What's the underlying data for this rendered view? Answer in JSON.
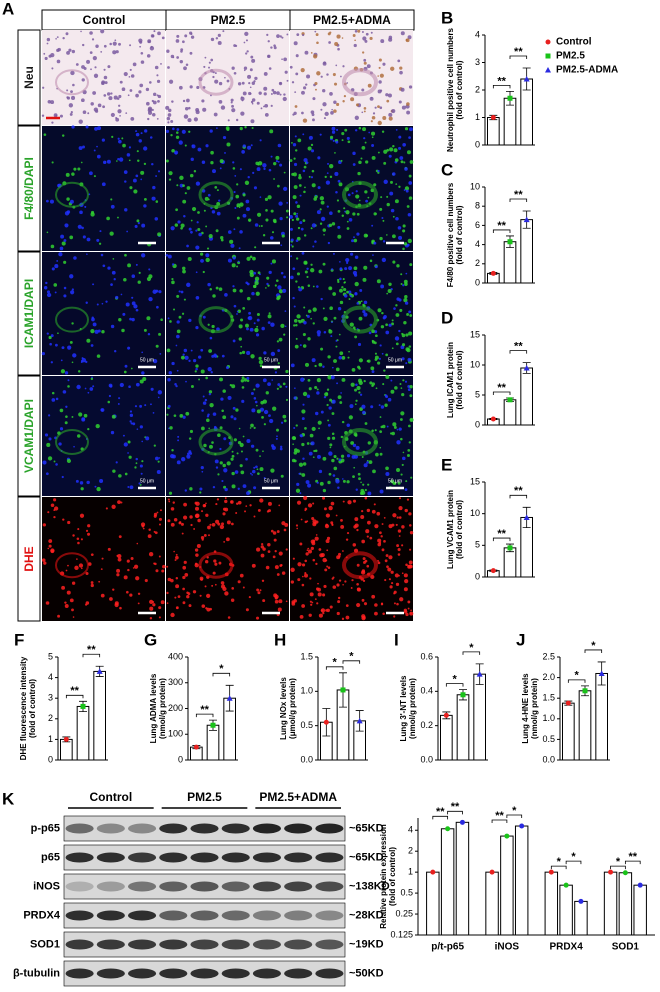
{
  "figure": {
    "panel": "A",
    "columns": [
      "Control",
      "PM2.5",
      "PM2.5+ADMA"
    ],
    "rows": [
      "Neu",
      "F4/80/DAPI",
      "ICAM1/DAPI",
      "VCAM1/DAPI",
      "DHE"
    ],
    "scale_bar_label": "50 μm",
    "groups": [
      {
        "name": "Control",
        "color": "#e8201f"
      },
      {
        "name": "PM2.5",
        "color": "#19c319"
      },
      {
        "name": "PM2.5-ADMA",
        "color": "#2a2ae0"
      }
    ],
    "blot": {
      "panel": "K",
      "groups": [
        "Control",
        "PM2.5",
        "PM2.5+ADMA"
      ],
      "rows": [
        {
          "name": "p-p65",
          "size": "~65KD"
        },
        {
          "name": "p65",
          "size": "~65KD"
        },
        {
          "name": "iNOS",
          "size": "~138KD"
        },
        {
          "name": "PRDX4",
          "size": "~28KD"
        },
        {
          "name": "SOD1",
          "size": "~19KD"
        },
        {
          "name": "β-tubulin",
          "size": "~50KD"
        }
      ]
    }
  },
  "chart_data": [
    {
      "type": "bar",
      "panel": "B",
      "ylabel": [
        "Neutrophil positive cell numbers",
        "(fold of control)"
      ],
      "values": [
        1,
        1.7,
        2.4
      ],
      "errors": [
        0.08,
        0.25,
        0.4
      ],
      "ylim": [
        0,
        4
      ],
      "yticks": [
        0,
        1,
        2,
        3,
        4
      ],
      "significance": [
        {
          "groups": [
            0,
            1
          ],
          "label": "**"
        },
        {
          "groups": [
            1,
            2
          ],
          "label": "**"
        }
      ]
    },
    {
      "type": "bar",
      "panel": "C",
      "ylabel": [
        "F4/80 positive cell numbers",
        "(fold of control)"
      ],
      "values": [
        1,
        4.3,
        6.6
      ],
      "errors": [
        0.1,
        0.6,
        0.9
      ],
      "ylim": [
        0,
        10
      ],
      "yticks": [
        0,
        2,
        4,
        6,
        8,
        10
      ],
      "significance": [
        {
          "groups": [
            0,
            1
          ],
          "label": "**"
        },
        {
          "groups": [
            1,
            2
          ],
          "label": "**"
        }
      ]
    },
    {
      "type": "bar",
      "panel": "D",
      "ylabel": [
        "Lung ICAM1 protein",
        "(fold of control)"
      ],
      "values": [
        1,
        4.2,
        9.5
      ],
      "errors": [
        0.1,
        0.3,
        0.9
      ],
      "ylim": [
        0,
        15
      ],
      "yticks": [
        0,
        5,
        10,
        15
      ],
      "significance": [
        {
          "groups": [
            0,
            1
          ],
          "label": "**"
        },
        {
          "groups": [
            1,
            2
          ],
          "label": "**"
        }
      ]
    },
    {
      "type": "bar",
      "panel": "E",
      "ylabel": [
        "Lung VCAM1 protein",
        "(fold of control)"
      ],
      "values": [
        1,
        4.6,
        9.4
      ],
      "errors": [
        0.1,
        0.6,
        1.6
      ],
      "ylim": [
        0,
        15
      ],
      "yticks": [
        0,
        5,
        10,
        15
      ],
      "significance": [
        {
          "groups": [
            0,
            1
          ],
          "label": "**"
        },
        {
          "groups": [
            1,
            2
          ],
          "label": "**"
        }
      ]
    },
    {
      "type": "bar",
      "panel": "F",
      "ylabel": [
        "DHE fluorescence intensity",
        "(fold of control)"
      ],
      "values": [
        1,
        2.6,
        4.3
      ],
      "errors": [
        0.12,
        0.25,
        0.25
      ],
      "ylim": [
        0,
        5
      ],
      "yticks": [
        0,
        1,
        2,
        3,
        4,
        5
      ],
      "significance": [
        {
          "groups": [
            0,
            1
          ],
          "label": "**"
        },
        {
          "groups": [
            1,
            2
          ],
          "label": "**"
        }
      ]
    },
    {
      "type": "bar",
      "panel": "G",
      "ylabel": [
        "Lung ADMA levels",
        "(nmol/g protein)"
      ],
      "values": [
        50,
        135,
        240
      ],
      "errors": [
        6,
        20,
        50
      ],
      "ylim": [
        0,
        400
      ],
      "yticks": [
        0,
        100,
        200,
        300,
        400
      ],
      "significance": [
        {
          "groups": [
            0,
            1
          ],
          "label": "**"
        },
        {
          "groups": [
            1,
            2
          ],
          "label": "*"
        }
      ]
    },
    {
      "type": "bar",
      "panel": "H",
      "ylabel": [
        "Lung NOx levels",
        "(μmol/g protein)"
      ],
      "values": [
        0.55,
        1.02,
        0.57
      ],
      "errors": [
        0.2,
        0.25,
        0.15
      ],
      "ylim": [
        0,
        1.5
      ],
      "yticks": [
        {
          "value": 0,
          "label": "0.0"
        },
        {
          "value": 0.5,
          "label": "0.5"
        },
        {
          "value": 1,
          "label": "1.0"
        },
        {
          "value": 1.5,
          "label": "1.5"
        }
      ],
      "significance": [
        {
          "groups": [
            0,
            1
          ],
          "label": "*"
        },
        {
          "groups": [
            1,
            2
          ],
          "label": "*"
        }
      ]
    },
    {
      "type": "bar",
      "panel": "I",
      "ylabel": [
        "Lung 3'-NT levels",
        "(nmol/g protein)"
      ],
      "values": [
        0.26,
        0.38,
        0.5
      ],
      "errors": [
        0.02,
        0.03,
        0.06
      ],
      "ylim": [
        0,
        0.6
      ],
      "yticks": [
        {
          "value": 0,
          "label": "0.0"
        },
        {
          "value": 0.2,
          "label": "0.2"
        },
        {
          "value": 0.4,
          "label": "0.4"
        },
        {
          "value": 0.6,
          "label": "0.6"
        }
      ],
      "significance": [
        {
          "groups": [
            0,
            1
          ],
          "label": "*"
        },
        {
          "groups": [
            1,
            2
          ],
          "label": "*"
        }
      ]
    },
    {
      "type": "bar",
      "panel": "J",
      "ylabel": [
        "Lung 4-HNE levels",
        "(nmol/g protein)"
      ],
      "values": [
        1.38,
        1.68,
        2.1
      ],
      "errors": [
        0.05,
        0.12,
        0.28
      ],
      "ylim": [
        0,
        2.5
      ],
      "yticks": [
        {
          "value": 0,
          "label": "0.0"
        },
        {
          "value": 0.5,
          "label": "0.5"
        },
        {
          "value": 1,
          "label": "1.0"
        },
        {
          "value": 1.5,
          "label": "1.5"
        },
        {
          "value": 2,
          "label": "2.0"
        },
        {
          "value": 2.5,
          "label": "2.5"
        }
      ],
      "significance": [
        {
          "groups": [
            0,
            1
          ],
          "label": "*"
        },
        {
          "groups": [
            1,
            2
          ],
          "label": "*"
        }
      ]
    },
    {
      "type": "groupedbar",
      "ylabel": [
        "Relative protein expression",
        "(fold of control)"
      ],
      "log_base": 2,
      "categories": [
        "p/t-p65",
        "iNOS",
        "PRDX4",
        "SOD1"
      ],
      "series": [
        {
          "name": "Control",
          "color": "#e8201f",
          "values": [
            1,
            1,
            1,
            1
          ]
        },
        {
          "name": "PM2.5",
          "color": "#19c319",
          "values": [
            4.2,
            3.3,
            0.65,
            0.98
          ]
        },
        {
          "name": "PM2.5-ADMA",
          "color": "#2a2ae0",
          "values": [
            5.2,
            4.6,
            0.38,
            0.65
          ]
        }
      ],
      "ylim": [
        0.125,
        6
      ],
      "yticks": [
        0.125,
        0.25,
        0.5,
        1,
        2,
        4
      ],
      "significance": [
        {
          "category": 0,
          "groups": [
            0,
            1
          ],
          "label": "**"
        },
        {
          "category": 0,
          "groups": [
            1,
            2
          ],
          "label": "**"
        },
        {
          "category": 1,
          "groups": [
            0,
            1
          ],
          "label": "**"
        },
        {
          "category": 1,
          "groups": [
            1,
            2
          ],
          "label": "*"
        },
        {
          "category": 2,
          "groups": [
            0,
            1
          ],
          "label": "*"
        },
        {
          "category": 2,
          "groups": [
            1,
            2
          ],
          "label": "*"
        },
        {
          "category": 3,
          "groups": [
            0,
            1
          ],
          "label": "*"
        },
        {
          "category": 3,
          "groups": [
            1,
            2
          ],
          "label": "**"
        }
      ]
    }
  ]
}
